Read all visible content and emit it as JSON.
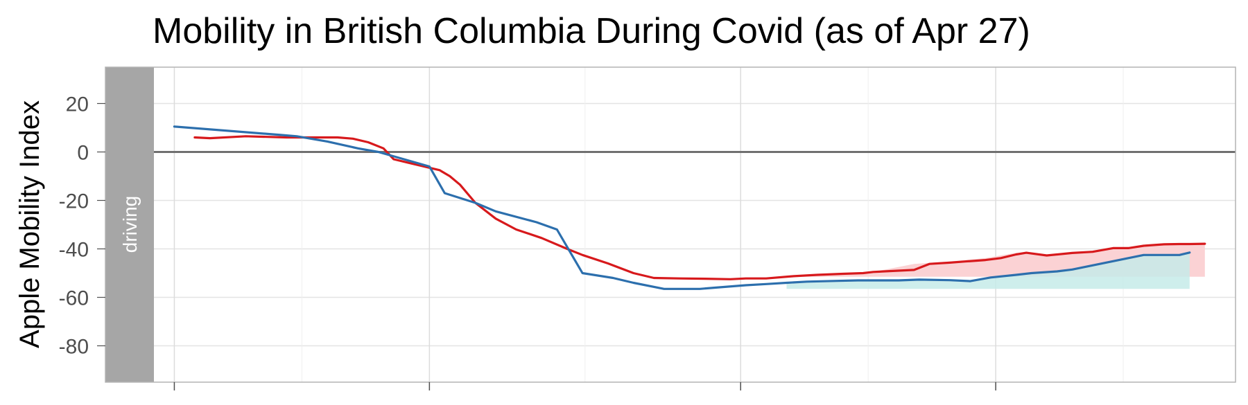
{
  "chart_data": {
    "type": "line",
    "title": "Mobility in British Columbia During Covid (as of Apr 27)",
    "ylabel": "Apple Mobility Index",
    "xlabel": "",
    "facet_label": "driving",
    "ylim": [
      -95,
      35
    ],
    "y_ticks": [
      20,
      0,
      -20,
      -40,
      -60,
      -80
    ],
    "y_tick_labels": [
      "20",
      "0",
      "-20",
      "-40",
      "-60",
      "-80"
    ],
    "x_unit": "days since Jan 13",
    "xlim": [
      -2,
      104
    ],
    "x_major_ticks": [
      0,
      25,
      55.5,
      80.5
    ],
    "x_minor_ticks": [
      12.5,
      40.25,
      68,
      93,
      105.5
    ],
    "x_tick_labels": [],
    "zero_line": 0,
    "grid": true,
    "colors": {
      "red_series": "#d7191c",
      "blue_series": "#2c6fad",
      "red_fill": "#fbd0d2",
      "teal_fill": "#c5ebe9",
      "strip": "#a6a6a6",
      "grid": "#e6e6e6",
      "zero_line": "#707070",
      "panel_border": "#b3b3b3"
    },
    "series": [
      {
        "color": "#d7191c",
        "x": [
          2,
          3.5,
          7,
          11,
          14,
          15,
          16,
          17.5,
          19,
          20.5,
          21.5,
          23,
          26,
          27,
          28,
          29.5,
          31.5,
          33.5,
          36,
          38.5,
          40,
          42.5,
          45,
          47,
          49.5,
          52,
          54.5,
          56,
          58,
          60.5,
          63,
          65.5,
          67.5,
          68.5,
          72.5,
          74,
          76,
          77.5,
          79.5,
          81,
          82.5,
          83.5,
          85.5,
          88,
          90,
          92,
          93.5,
          95,
          97,
          98.5,
          99.5,
          101
        ],
        "y": [
          6,
          5.7,
          6.5,
          6,
          6,
          6,
          6,
          5.5,
          4,
          1.5,
          -3,
          -4.5,
          -7.5,
          -10,
          -13.5,
          -21,
          -27.5,
          -32,
          -35.5,
          -40,
          -42.5,
          -46,
          -50,
          -52,
          -52.2,
          -52.3,
          -52.5,
          -52.2,
          -52.2,
          -51.3,
          -50.7,
          -50.3,
          -50,
          -49.5,
          -48.7,
          -46.2,
          -45.7,
          -45.2,
          -44.6,
          -43.8,
          -42.3,
          -41.6,
          -42.7,
          -41.7,
          -41.2,
          -39.7,
          -39.7,
          -38.7,
          -38.1,
          -38,
          -38,
          -37.9
        ]
      },
      {
        "color": "#2c6fad",
        "x": [
          0,
          10.5,
          12,
          15,
          18,
          20,
          22.5,
          25,
          26.5,
          29.5,
          31.5,
          35.5,
          37.5,
          40,
          43,
          45,
          48,
          51.5,
          53,
          56,
          58,
          60,
          62,
          65,
          67,
          68,
          71,
          73,
          76,
          78,
          80,
          82.5,
          84,
          86.5,
          88,
          95,
          98.5,
          99.5
        ],
        "y": [
          10.5,
          7,
          6.5,
          4.3,
          1.5,
          0,
          -3,
          -6,
          -17,
          -21,
          -24.5,
          -29,
          -32,
          -50,
          -52,
          -54,
          -56.5,
          -56.5,
          -56,
          -55,
          -54.5,
          -54,
          -53.5,
          -53.2,
          -53,
          -53,
          -53,
          -52.7,
          -52.9,
          -53.3,
          -51.8,
          -50.7,
          -50,
          -49.3,
          -48.5,
          -42.5,
          -42.5,
          -41.5
        ]
      }
    ],
    "fills": [
      {
        "color": "#fbd0d2",
        "x": [
          60,
          65.5,
          68.5,
          72.5,
          76,
          79.5,
          82.5,
          85.5,
          88,
          92,
          95,
          98.5,
          101
        ],
        "y_top": [
          -51.5,
          -50.3,
          -49.5,
          -46.2,
          -45.2,
          -43.8,
          -41.6,
          -42.7,
          -41.7,
          -39.7,
          -38.7,
          -38,
          -37.9
        ],
        "y_bottom": -51.5
      },
      {
        "color": "#c5ebe9",
        "x": [
          60,
          65,
          68,
          71,
          73,
          76,
          78,
          80,
          82.5,
          84,
          86.5,
          88,
          95,
          98.5,
          99.5
        ],
        "y_top": [
          -54,
          -53.2,
          -53,
          -53,
          -52.7,
          -52.9,
          -53.3,
          -51.8,
          -50.7,
          -50,
          -49.3,
          -48.5,
          -42.5,
          -42.5,
          -41.5
        ],
        "y_bottom": -56.5
      }
    ]
  }
}
